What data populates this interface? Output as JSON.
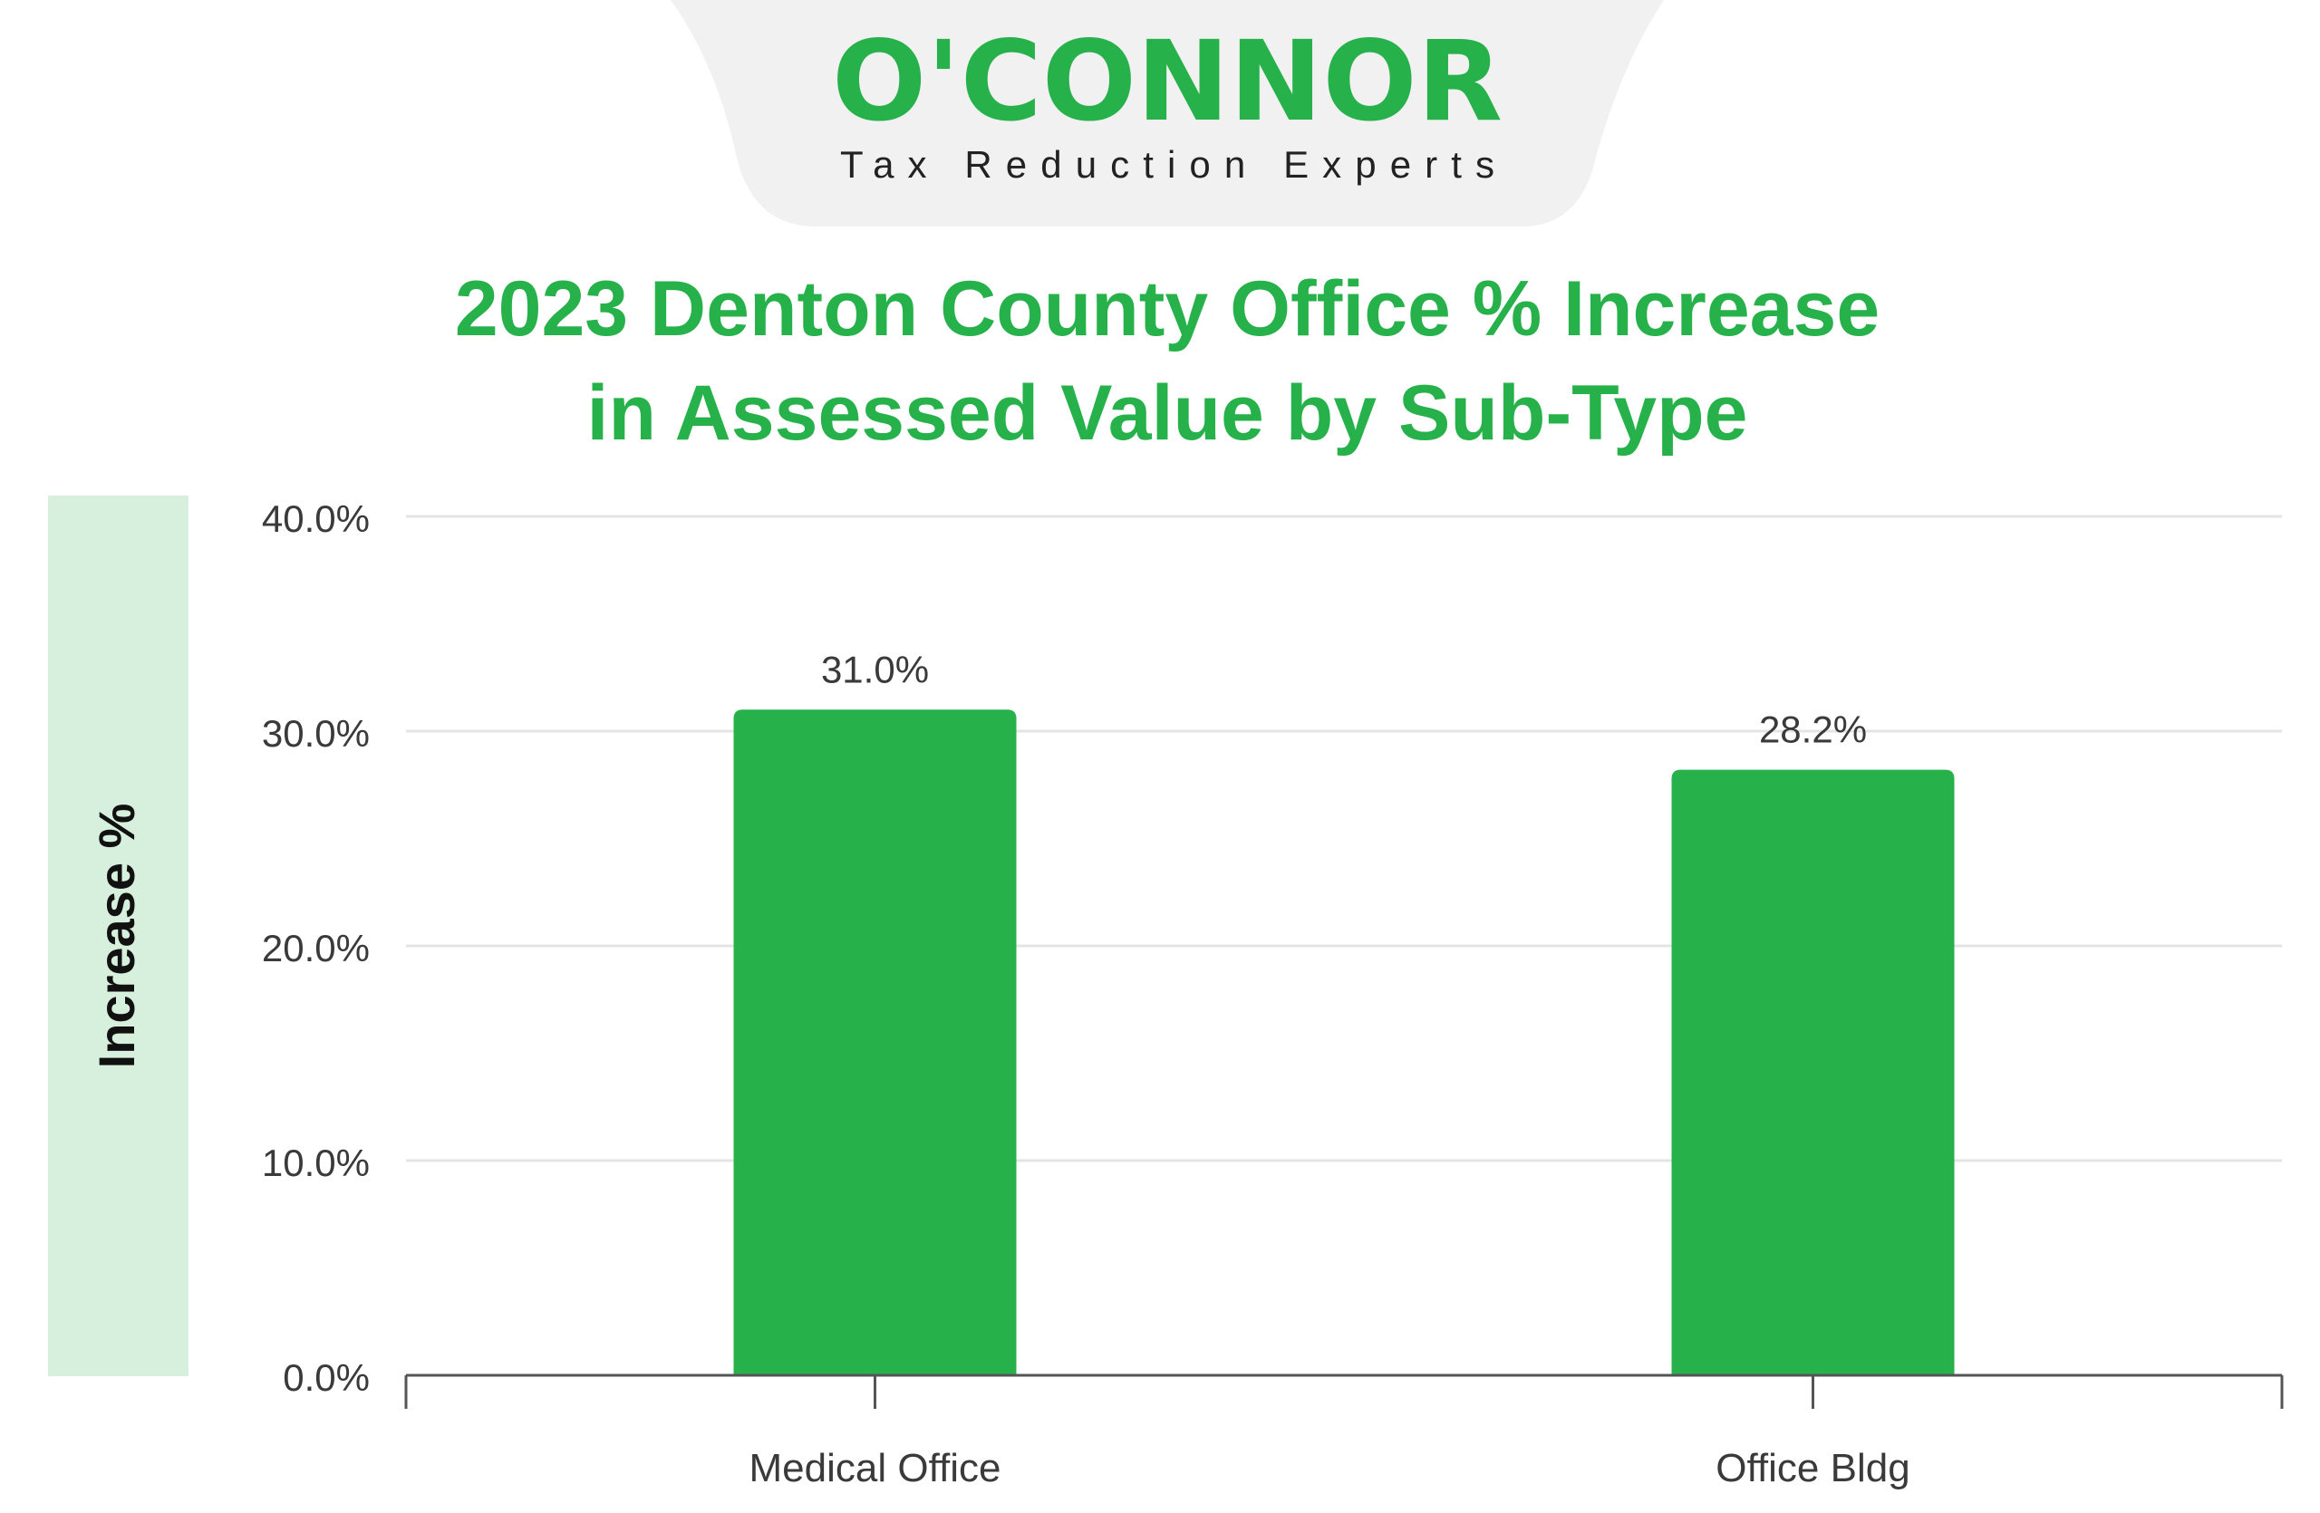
{
  "logo": {
    "brand": "O'CONNOR",
    "tagline": "Tax Reduction Experts"
  },
  "colors": {
    "brand_green": "#27b14b",
    "axis_band": "#d6f0dd",
    "logo_banner": "#f1f1f1",
    "text_dark": "#3a3a3a",
    "grid": "#e4e4e4"
  },
  "chart_data": {
    "type": "bar",
    "title_lines": [
      "2023 Denton County Office % Increase",
      "in Assessed Value by Sub-Type"
    ],
    "ylabel": "Increase %",
    "xlabel": "",
    "ylim": [
      0,
      40
    ],
    "yticks": [
      0,
      10,
      20,
      30,
      40
    ],
    "ytick_labels": [
      "0.0%",
      "10.0%",
      "20.0%",
      "30.0%",
      "40.0%"
    ],
    "grid": true,
    "categories": [
      "Medical Office",
      "Office Bldg"
    ],
    "values": [
      31.0,
      28.2
    ],
    "value_labels": [
      "31.0%",
      "28.2%"
    ]
  }
}
